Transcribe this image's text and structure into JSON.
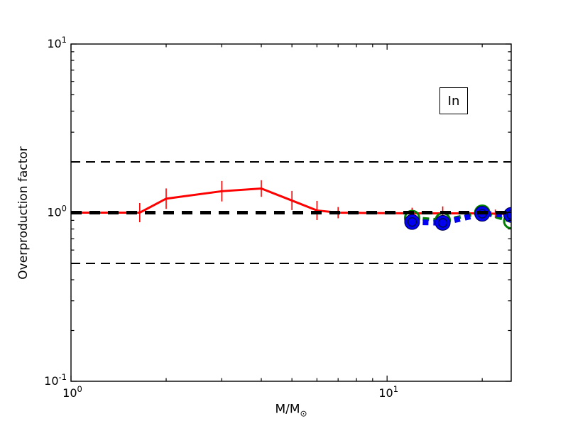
{
  "chart_data": {
    "type": "line",
    "title": "",
    "xlabel": "M/M⊙",
    "xlabel_main": "M/M",
    "xlabel_subscript": "⊙",
    "ylabel": "Overproduction factor",
    "xscale": "log",
    "yscale": "log",
    "xlim": [
      1,
      24.7
    ],
    "ylim": [
      0.1,
      10
    ],
    "grid": false,
    "legend": "none",
    "annotation_box": {
      "text": "In",
      "position": "top-right"
    },
    "axes_color": "#000000",
    "background_color": "#ffffff",
    "x_major_ticks": [
      {
        "value": 1,
        "base": "10",
        "exponent": "0"
      },
      {
        "value": 10,
        "base": "10",
        "exponent": "1"
      }
    ],
    "x_minor_ticks": [
      2,
      3,
      4,
      5,
      6,
      7,
      8,
      9,
      20
    ],
    "y_major_ticks": [
      {
        "value": 10,
        "base": "10",
        "exponent": "1"
      },
      {
        "value": 1,
        "base": "10",
        "exponent": "0"
      },
      {
        "value": 0.1,
        "base": "10",
        "exponent": "-1"
      }
    ],
    "y_minor_ticks": [
      0.2,
      0.3,
      0.4,
      0.5,
      0.6,
      0.7,
      0.8,
      0.9,
      2,
      3,
      4,
      5,
      6,
      7,
      8,
      9
    ],
    "reference_lines": [
      {
        "y": 1.0,
        "color": "#000000",
        "style": "dashed",
        "width": 5,
        "dash": [
          15,
          11
        ]
      },
      {
        "y": 2.0,
        "color": "#000000",
        "style": "dashed",
        "width": 2,
        "dash": [
          13,
          8
        ]
      },
      {
        "y": 0.5,
        "color": "#000000",
        "style": "dashed",
        "width": 2,
        "dash": [
          13,
          8
        ]
      }
    ],
    "series": [
      {
        "name": "red-solid-line-with-errorbars",
        "color": "#ff0000",
        "line_style": "solid",
        "line_width": 3,
        "marker": "none",
        "x": [
          1.0,
          1.65,
          2.0,
          3.0,
          4.0,
          5.0,
          6.0,
          7.0,
          12.0,
          15.0,
          20.0,
          22.0,
          24.7
        ],
        "y": [
          1.0,
          1.0,
          1.21,
          1.34,
          1.39,
          1.18,
          1.03,
          1.0,
          0.99,
          0.99,
          0.99,
          0.985,
          0.98
        ],
        "yerr_factor": [
          1.0,
          1.14,
          1.15,
          1.15,
          1.12,
          1.14,
          1.14,
          1.08,
          1.08,
          1.1,
          1.1,
          1.06,
          1.04
        ]
      },
      {
        "name": "green-dashed-line-open-circles",
        "color": "#008000",
        "line_style": "dashed",
        "line_width": 5,
        "dash": [
          9,
          6
        ],
        "marker": "open-circle",
        "marker_radius": 10,
        "marker_stroke_width": 3,
        "x": [
          12.0,
          15.0,
          20.0,
          24.7
        ],
        "y": [
          0.93,
          0.9,
          1.0,
          0.89
        ]
      },
      {
        "name": "blue-dotted-line-filled-circles",
        "color": "#0202f0",
        "line_style": "dotted",
        "line_width": 8,
        "dash": [
          8,
          7
        ],
        "marker": "filled-circle",
        "marker_radius": 10.5,
        "marker_edge_color": "#00004d",
        "inner_ring_color": "#000d4d",
        "x": [
          12.0,
          15.0,
          20.0,
          24.7
        ],
        "y": [
          0.88,
          0.87,
          0.985,
          0.97
        ]
      }
    ]
  }
}
